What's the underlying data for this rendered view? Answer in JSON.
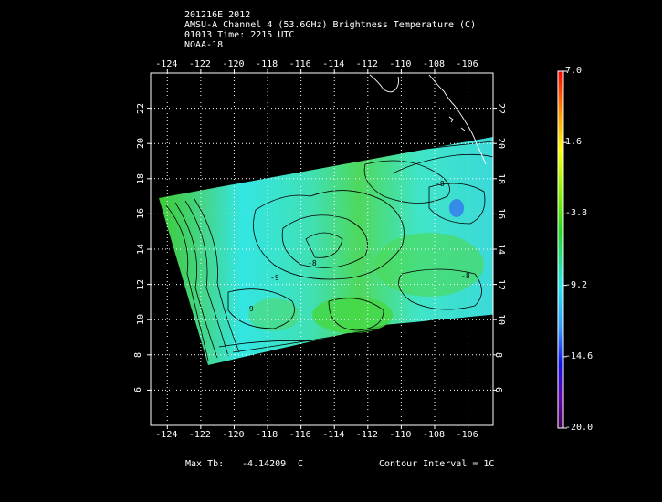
{
  "header": {
    "line1": "201216E 2012",
    "line2": "AMSU-A Channel 4 (53.6GHz) Brightness Temperature (C)",
    "line3": "01013 Time: 2215 UTC",
    "line4": "NOAA-18"
  },
  "map": {
    "lon_ticks_top": [
      "-124",
      "-122",
      "-120",
      "-118",
      "-116",
      "-114",
      "-112",
      "-110",
      "-108",
      "-106"
    ],
    "lon_ticks_bottom": [
      "-124",
      "-122",
      "-120",
      "-118",
      "-116",
      "-114",
      "-112",
      "-110",
      "-108",
      "-106"
    ],
    "lat_ticks_left": [
      "22",
      "20",
      "18",
      "16",
      "14",
      "12",
      "10",
      "8",
      "6"
    ],
    "lat_ticks_right": [
      "22",
      "20",
      "18",
      "16",
      "14",
      "12",
      "10",
      "8",
      "6"
    ],
    "lon_range": [
      -125,
      -104.5
    ],
    "lat_range": [
      4,
      24
    ]
  },
  "colorbar": {
    "labels": [
      "7.0",
      "1.6",
      "-3.8",
      "-9.2",
      "-14.6",
      "-20.0"
    ],
    "min": -20.0,
    "max": 7.0
  },
  "footer": {
    "max_label": "Max Tb:",
    "max_value": "-4.14209",
    "max_unit": "C",
    "contour": "Contour Interval = 1C"
  },
  "contour_labels": [
    "-9",
    "-8",
    "-8",
    "-9",
    "-8"
  ]
}
